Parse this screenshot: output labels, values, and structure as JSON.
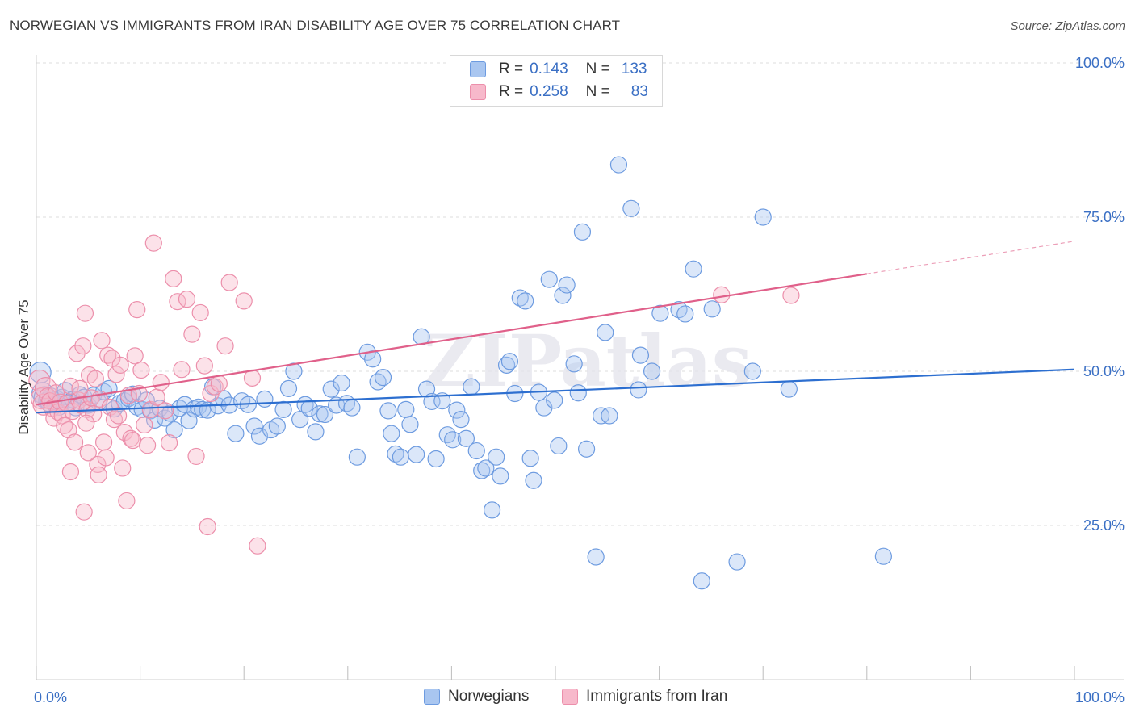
{
  "title": "NORWEGIAN VS IMMIGRANTS FROM IRAN DISABILITY AGE OVER 75 CORRELATION CHART",
  "source": "Source: ZipAtlas.com",
  "watermark": "ZIPatlas",
  "legend_top": [
    {
      "r_label": "R =",
      "r_value": "0.143",
      "n_label": "N =",
      "n_value": "133"
    },
    {
      "r_label": "R =",
      "r_value": "0.258",
      "n_label": "N =",
      "n_value": "83"
    }
  ],
  "legend_bottom": [
    "Norwegians",
    "Immigrants from Iran"
  ],
  "colors": {
    "norwegian_fill": "#a9c6f0",
    "norwegian_stroke": "#6d9be0",
    "norwegian_line": "#2d6fd0",
    "iran_fill": "#f7b9cb",
    "iran_stroke": "#ec8fab",
    "iran_line": "#e0608a",
    "tick_label": "#3a6fc4",
    "grid": "#dcdcdc"
  },
  "chart_data": {
    "type": "scatter",
    "title": "NORWEGIAN VS IMMIGRANTS FROM IRAN DISABILITY AGE OVER 75 CORRELATION CHART",
    "xlabel": "",
    "ylabel": "Disability Age Over 75",
    "xlim": [
      0,
      100
    ],
    "ylim": [
      0,
      100
    ],
    "x_tick_labels": [
      "0.0%",
      "100.0%"
    ],
    "y_ticks": [
      25,
      50,
      75,
      100
    ],
    "y_tick_labels": [
      "25.0%",
      "50.0%",
      "75.0%",
      "100.0%"
    ],
    "grid": true,
    "legend_position": "top-center",
    "series": [
      {
        "name": "Norwegians",
        "r": 0.143,
        "n": 133,
        "trend": {
          "x": [
            0,
            100
          ],
          "y": [
            43.3,
            50.3
          ]
        },
        "points": [
          [
            0.4,
            49.8
          ],
          [
            0.6,
            46.5
          ],
          [
            0.8,
            45.8
          ],
          [
            1.0,
            45.3
          ],
          [
            1.2,
            44.8
          ],
          [
            1.4,
            46.0
          ],
          [
            1.6,
            45.1
          ],
          [
            1.8,
            44.6
          ],
          [
            2.0,
            45.5
          ],
          [
            2.2,
            44.2
          ],
          [
            2.5,
            45.8
          ],
          [
            2.8,
            46.9
          ],
          [
            3.2,
            44.9
          ],
          [
            3.5,
            45.4
          ],
          [
            3.8,
            44.1
          ],
          [
            4.2,
            46.2
          ],
          [
            4.6,
            45.8
          ],
          [
            5.0,
            44.5
          ],
          [
            5.5,
            46.1
          ],
          [
            6.0,
            45.0
          ],
          [
            6.5,
            46.7
          ],
          [
            7.0,
            47.2
          ],
          [
            7.5,
            43.9
          ],
          [
            8.0,
            44.8
          ],
          [
            8.5,
            45.2
          ],
          [
            8.9,
            45.6
          ],
          [
            9.3,
            46.3
          ],
          [
            9.7,
            44.2
          ],
          [
            10.2,
            43.8
          ],
          [
            10.6,
            45.3
          ],
          [
            11.0,
            43.6
          ],
          [
            11.4,
            42.1
          ],
          [
            11.9,
            44.0
          ],
          [
            12.4,
            42.4
          ],
          [
            12.9,
            43.2
          ],
          [
            13.3,
            40.5
          ],
          [
            13.8,
            44.0
          ],
          [
            14.3,
            44.6
          ],
          [
            14.7,
            42.0
          ],
          [
            15.2,
            43.9
          ],
          [
            15.6,
            44.2
          ],
          [
            16.0,
            43.8
          ],
          [
            16.5,
            43.7
          ],
          [
            17.0,
            47.5
          ],
          [
            17.5,
            44.4
          ],
          [
            18.0,
            45.6
          ],
          [
            18.6,
            44.5
          ],
          [
            19.2,
            39.9
          ],
          [
            19.8,
            45.2
          ],
          [
            20.4,
            44.6
          ],
          [
            21.0,
            41.1
          ],
          [
            21.5,
            39.5
          ],
          [
            22.0,
            45.5
          ],
          [
            22.6,
            40.5
          ],
          [
            23.2,
            41.1
          ],
          [
            23.8,
            43.8
          ],
          [
            24.3,
            47.2
          ],
          [
            24.8,
            50.0
          ],
          [
            25.4,
            42.2
          ],
          [
            25.9,
            44.6
          ],
          [
            26.3,
            44.0
          ],
          [
            26.9,
            40.2
          ],
          [
            27.3,
            43.1
          ],
          [
            27.8,
            43.0
          ],
          [
            28.4,
            47.1
          ],
          [
            28.9,
            44.5
          ],
          [
            29.4,
            48.1
          ],
          [
            29.9,
            44.8
          ],
          [
            30.4,
            44.1
          ],
          [
            30.9,
            36.1
          ],
          [
            31.9,
            53.1
          ],
          [
            32.4,
            52.0
          ],
          [
            32.9,
            48.3
          ],
          [
            33.4,
            49.0
          ],
          [
            33.9,
            43.6
          ],
          [
            34.2,
            39.9
          ],
          [
            34.6,
            36.6
          ],
          [
            35.1,
            36.1
          ],
          [
            35.6,
            43.8
          ],
          [
            36.0,
            41.4
          ],
          [
            36.6,
            36.5
          ],
          [
            37.1,
            55.6
          ],
          [
            37.6,
            47.1
          ],
          [
            38.1,
            45.1
          ],
          [
            38.5,
            35.8
          ],
          [
            39.1,
            45.2
          ],
          [
            39.6,
            39.7
          ],
          [
            40.1,
            38.9
          ],
          [
            40.5,
            43.7
          ],
          [
            40.9,
            42.2
          ],
          [
            41.4,
            39.1
          ],
          [
            41.9,
            47.5
          ],
          [
            42.4,
            37.1
          ],
          [
            42.9,
            33.9
          ],
          [
            43.3,
            34.3
          ],
          [
            43.9,
            27.5
          ],
          [
            44.3,
            36.1
          ],
          [
            44.7,
            33.0
          ],
          [
            45.3,
            51.0
          ],
          [
            45.6,
            51.6
          ],
          [
            46.1,
            46.4
          ],
          [
            46.6,
            61.9
          ],
          [
            47.1,
            61.4
          ],
          [
            47.6,
            35.9
          ],
          [
            47.9,
            32.3
          ],
          [
            48.4,
            46.6
          ],
          [
            48.9,
            44.1
          ],
          [
            49.4,
            64.9
          ],
          [
            49.9,
            45.3
          ],
          [
            50.3,
            37.9
          ],
          [
            50.7,
            62.3
          ],
          [
            51.1,
            64.0
          ],
          [
            51.8,
            51.2
          ],
          [
            52.2,
            46.5
          ],
          [
            52.6,
            72.6
          ],
          [
            53.0,
            37.4
          ],
          [
            53.9,
            19.9
          ],
          [
            54.4,
            42.8
          ],
          [
            54.8,
            56.3
          ],
          [
            55.2,
            42.8
          ],
          [
            56.1,
            83.5
          ],
          [
            57.3,
            76.4
          ],
          [
            58.0,
            47.0
          ],
          [
            58.2,
            52.6
          ],
          [
            59.3,
            50.0
          ],
          [
            60.1,
            59.4
          ],
          [
            61.9,
            60.0
          ],
          [
            62.5,
            59.3
          ],
          [
            63.3,
            66.6
          ],
          [
            64.1,
            16.0
          ],
          [
            65.1,
            60.1
          ],
          [
            67.5,
            19.1
          ],
          [
            69.0,
            50.0
          ],
          [
            70.0,
            75.0
          ],
          [
            72.5,
            47.1
          ],
          [
            81.6,
            20.0
          ]
        ]
      },
      {
        "name": "Immigrants from Iran",
        "r": 0.258,
        "n": 83,
        "trend": {
          "x": [
            0,
            80
          ],
          "y": [
            44.6,
            65.8
          ]
        },
        "trend_dashed": {
          "x": [
            80,
            100
          ],
          "y": [
            65.8,
            71.1
          ]
        },
        "points": [
          [
            0.3,
            48.5
          ],
          [
            0.5,
            45.6
          ],
          [
            0.7,
            44.6
          ],
          [
            0.9,
            47.3
          ],
          [
            1.1,
            46.0
          ],
          [
            1.3,
            45.2
          ],
          [
            1.5,
            44.0
          ],
          [
            1.7,
            42.4
          ],
          [
            1.9,
            46.5
          ],
          [
            2.1,
            43.4
          ],
          [
            2.3,
            45.0
          ],
          [
            2.5,
            42.8
          ],
          [
            2.7,
            41.2
          ],
          [
            2.9,
            44.8
          ],
          [
            3.1,
            40.5
          ],
          [
            3.3,
            47.6
          ],
          [
            3.5,
            43.5
          ],
          [
            3.7,
            38.5
          ],
          [
            3.9,
            52.9
          ],
          [
            4.1,
            45.3
          ],
          [
            4.3,
            44.5
          ],
          [
            4.5,
            54.1
          ],
          [
            4.7,
            59.4
          ],
          [
            4.9,
            43.8
          ],
          [
            5.1,
            49.4
          ],
          [
            5.3,
            45.7
          ],
          [
            5.5,
            43.1
          ],
          [
            5.7,
            48.8
          ],
          [
            5.9,
            34.9
          ],
          [
            6.1,
            45.5
          ],
          [
            6.3,
            55.0
          ],
          [
            6.5,
            38.5
          ],
          [
            6.7,
            36.0
          ],
          [
            6.9,
            52.6
          ],
          [
            7.1,
            44.2
          ],
          [
            7.3,
            52.1
          ],
          [
            7.5,
            42.2
          ],
          [
            7.7,
            49.5
          ],
          [
            7.9,
            42.8
          ],
          [
            8.1,
            51.0
          ],
          [
            8.3,
            34.3
          ],
          [
            8.5,
            40.1
          ],
          [
            8.7,
            29.0
          ],
          [
            8.9,
            46.1
          ],
          [
            9.1,
            39.1
          ],
          [
            9.3,
            38.8
          ],
          [
            9.5,
            52.5
          ],
          [
            9.7,
            60.0
          ],
          [
            9.9,
            46.4
          ],
          [
            10.1,
            50.2
          ],
          [
            10.4,
            41.3
          ],
          [
            10.7,
            38.0
          ],
          [
            11.0,
            43.8
          ],
          [
            11.3,
            70.8
          ],
          [
            11.6,
            45.8
          ],
          [
            12.0,
            48.2
          ],
          [
            12.4,
            43.6
          ],
          [
            12.8,
            38.4
          ],
          [
            13.2,
            65.0
          ],
          [
            13.6,
            61.3
          ],
          [
            14.0,
            50.3
          ],
          [
            14.5,
            61.7
          ],
          [
            15.0,
            56.0
          ],
          [
            15.4,
            36.2
          ],
          [
            15.8,
            59.5
          ],
          [
            16.2,
            50.9
          ],
          [
            16.5,
            24.8
          ],
          [
            16.8,
            46.4
          ],
          [
            17.2,
            47.5
          ],
          [
            17.6,
            48.0
          ],
          [
            18.2,
            54.1
          ],
          [
            18.6,
            64.4
          ],
          [
            20.0,
            61.4
          ],
          [
            20.8,
            48.9
          ],
          [
            21.3,
            21.7
          ],
          [
            3.3,
            33.7
          ],
          [
            4.2,
            47.2
          ],
          [
            4.6,
            27.2
          ],
          [
            4.8,
            41.6
          ],
          [
            5.0,
            36.8
          ],
          [
            6.0,
            33.2
          ],
          [
            72.7,
            62.3
          ],
          [
            66.0,
            62.4
          ]
        ]
      }
    ]
  }
}
